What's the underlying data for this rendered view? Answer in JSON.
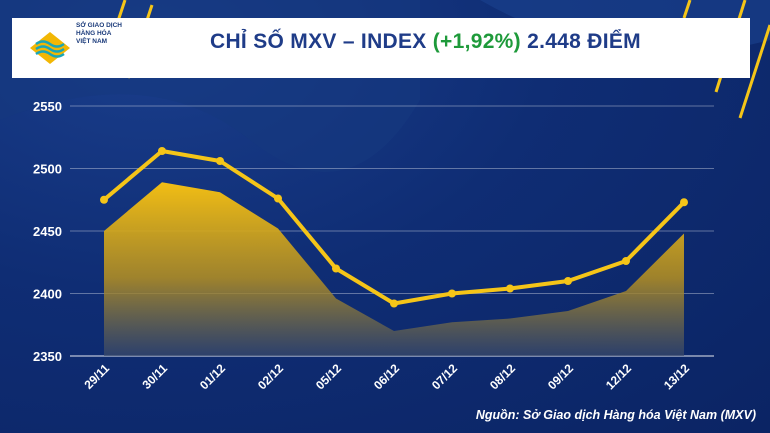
{
  "header": {
    "logo_lines": [
      "SỞ GIAO DỊCH",
      "HÀNG HÓA",
      "VIỆT NAM"
    ],
    "title_prefix": "CHỈ SỐ MXV – INDEX ",
    "title_change": "(+1,92%)",
    "title_suffix": " 2.448 ĐIỂM"
  },
  "colors": {
    "background": "#0f2d74",
    "line": "#f5c518",
    "area": "#d6a812",
    "title": "#1f3c88",
    "change": "#1e9a3a"
  },
  "chart_data": {
    "type": "line",
    "title": "CHỈ SỐ MXV – INDEX (+1,92%) 2.448 ĐIỂM",
    "categories": [
      "29/11",
      "30/11",
      "01/12",
      "02/12",
      "05/12",
      "06/12",
      "07/12",
      "08/12",
      "09/12",
      "12/12",
      "13/12"
    ],
    "series": [
      {
        "name": "MXV-Index (line)",
        "style": "line-markers",
        "values": [
          2475,
          2514,
          2506,
          2476,
          2420,
          2392,
          2400,
          2404,
          2410,
          2426,
          2473
        ]
      },
      {
        "name": "MXV-Index (area)",
        "style": "area",
        "values": [
          2450,
          2489,
          2481,
          2452,
          2396,
          2370,
          2377,
          2380,
          2386,
          2402,
          2448
        ]
      }
    ],
    "yticks": [
      2350,
      2400,
      2450,
      2500,
      2550
    ],
    "ylim": [
      2350,
      2550
    ],
    "grid": true,
    "xlabel": "",
    "ylabel": ""
  },
  "footer": {
    "source": "Nguồn: Sở Giao dịch Hàng hóa Việt Nam (MXV)"
  }
}
